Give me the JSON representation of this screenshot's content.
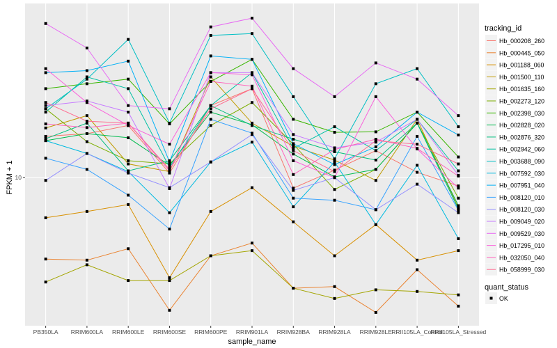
{
  "chart_data": {
    "type": "line",
    "title": "",
    "xlabel": "sample_name",
    "ylabel": "FPKM + 1",
    "y_scale": "log10",
    "ylim": [
      1.52,
      91.6
    ],
    "y_ticks": [
      10
    ],
    "y_tick_labels": [
      "10"
    ],
    "grid": true,
    "legend_position": "right",
    "categories": [
      "PB350LA",
      "RRIM600LA",
      "RRIM600LE",
      "RRIM600SE",
      "RRIM600PE",
      "RRIM901LA",
      "RRIM928BA",
      "RRIM928LA",
      "RRIM928LE",
      "RRII105LA_Control",
      "RRII105LA_Stressed"
    ],
    "legend_title": "tracking_id",
    "series": [
      {
        "name": "Hb_000208_260",
        "color": "#F8766D",
        "values": [
          16.9,
          17.5,
          19.4,
          10.6,
          25,
          31,
          8.75,
          11.0,
          14.1,
          10.7,
          9.0
        ]
      },
      {
        "name": "Hb_000445_050",
        "color": "#EA8331",
        "values": [
          3.55,
          3.5,
          4.05,
          1.85,
          3.7,
          4.35,
          2.45,
          2.5,
          1.8,
          3.1,
          1.95
        ]
      },
      {
        "name": "Hb_001188_060",
        "color": "#D89000",
        "values": [
          6.0,
          6.5,
          7.1,
          2.8,
          6.5,
          8.8,
          5.7,
          3.7,
          5.5,
          3.5,
          3.95
        ]
      },
      {
        "name": "Hb_001500_110",
        "color": "#C09B00",
        "values": [
          18.8,
          22,
          11.9,
          10.8,
          36,
          20,
          14.9,
          12.5,
          9.65,
          21,
          6.8
        ]
      },
      {
        "name": "Hb_001635_160",
        "color": "#A3A500",
        "values": [
          2.65,
          3.3,
          2.7,
          2.7,
          3.7,
          3.95,
          2.45,
          2.15,
          2.4,
          2.35,
          2.25
        ]
      },
      {
        "name": "Hb_002273_120",
        "color": "#7CAE00",
        "values": [
          24,
          15.8,
          12.4,
          11.9,
          19.4,
          26,
          15.3,
          8.6,
          11.1,
          20,
          7.7
        ]
      },
      {
        "name": "Hb_002398_030",
        "color": "#39B600",
        "values": [
          31,
          33,
          35,
          19.8,
          34,
          45,
          21,
          17.8,
          17.9,
          23,
          13
        ]
      },
      {
        "name": "Hb_002828_020",
        "color": "#00BB4E",
        "values": [
          16,
          17.5,
          16.6,
          11.7,
          23,
          19.6,
          13.5,
          10.1,
          11.1,
          20,
          7
        ]
      },
      {
        "name": "Hb_002876_320",
        "color": "#00BF7D",
        "values": [
          16.4,
          20,
          10.9,
          12.4,
          25,
          19.4,
          16.3,
          13.9,
          12.5,
          20,
          6.7
        ]
      },
      {
        "name": "Hb_002942_060",
        "color": "#00C1A3",
        "values": [
          23,
          36,
          31,
          11.4,
          25,
          38,
          14.5,
          19.1,
          14.1,
          21,
          10.9
        ]
      },
      {
        "name": "Hb_003688_090",
        "color": "#00BFC4",
        "values": [
          24,
          35,
          58,
          20,
          61,
          62.5,
          28,
          12.7,
          33,
          40,
          19.1
        ]
      },
      {
        "name": "Hb_007592_030",
        "color": "#00BAE0",
        "values": [
          16,
          13.6,
          10.8,
          6.4,
          12.2,
          15.7,
          6.9,
          12.2,
          5.5,
          11.7,
          4.6
        ]
      },
      {
        "name": "Hb_007951_040",
        "color": "#00B0F6",
        "values": [
          38,
          39,
          44,
          12.2,
          47,
          45,
          15.4,
          11.8,
          14.8,
          23,
          17.2
        ]
      },
      {
        "name": "Hb_008120_010",
        "color": "#35A2FF",
        "values": [
          12.8,
          11.1,
          8.0,
          5.2,
          21,
          17.6,
          7.7,
          7.5,
          6.65,
          16.9,
          6.6
        ]
      },
      {
        "name": "Hb_008120_030",
        "color": "#9590FF",
        "values": [
          9.65,
          13.6,
          10.6,
          8.8,
          12.2,
          17.3,
          8.5,
          10,
          6.65,
          9.2,
          6.4
        ]
      },
      {
        "name": "Hb_009049_020",
        "color": "#C77CFF",
        "values": [
          25,
          26.5,
          23,
          8.7,
          38,
          38,
          17.3,
          14.6,
          15.7,
          21,
          10.3
        ]
      },
      {
        "name": "Hb_009529_030",
        "color": "#E76BF3",
        "values": [
          71,
          52,
          25,
          24,
          68,
          76,
          40,
          28,
          43,
          35,
          22
        ]
      },
      {
        "name": "Hb_017295_010",
        "color": "#FA62DB",
        "values": [
          40,
          26,
          19.4,
          15.3,
          38,
          37,
          12.4,
          10,
          28,
          14.4,
          8.75
        ]
      },
      {
        "name": "Hb_032050_040",
        "color": "#FF62BC",
        "values": [
          19.8,
          18.9,
          20,
          10.9,
          34,
          32,
          10.4,
          14.3,
          16.3,
          14.5,
          10.2
        ]
      },
      {
        "name": "Hb_058999_030",
        "color": "#FF6C91",
        "values": [
          26,
          20.5,
          20,
          11.1,
          24,
          31,
          14.1,
          10.8,
          16,
          15.3,
          11.9
        ]
      }
    ],
    "shape_legend": {
      "title": "quant_status",
      "items": [
        "OK"
      ]
    }
  }
}
